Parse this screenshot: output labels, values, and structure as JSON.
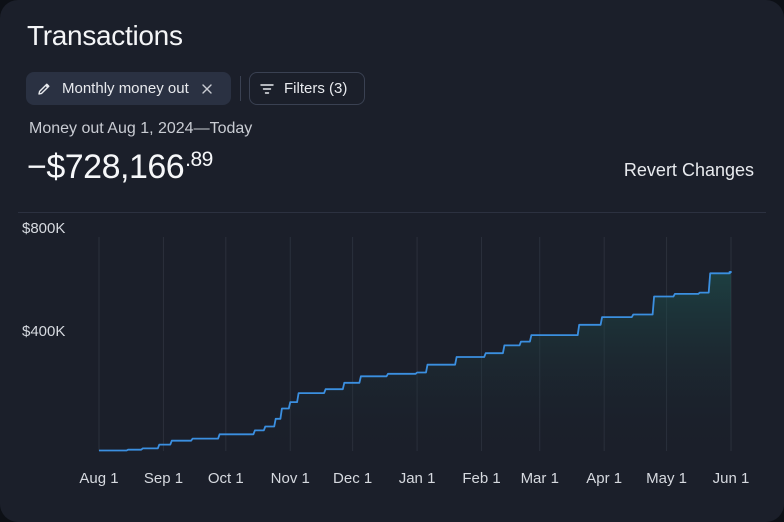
{
  "header": {
    "title": "Transactions",
    "active_filter_label": "Monthly money out",
    "filters_label": "Filters (3)",
    "subtitle": "Money out Aug 1, 2024—Today",
    "amount_main": "−$728,166",
    "amount_cents": ".89",
    "revert_label": "Revert Changes"
  },
  "icons": {
    "edit": "pencil-icon",
    "close": "close-icon",
    "filter": "filter-lines-icon"
  },
  "colors": {
    "line": "#3b8fe0",
    "area_top": "#1f5a55",
    "card": "#1b1f2a"
  },
  "chart_data": {
    "type": "area",
    "title": "",
    "xlabel": "",
    "ylabel": "",
    "grid": "vertical",
    "y_ticks": [
      {
        "value": 400000,
        "label": "$400K"
      },
      {
        "value": 800000,
        "label": "$800K"
      }
    ],
    "ylim": [
      0,
      800000
    ],
    "x_ticks": [
      {
        "x": "2024-08-01",
        "label": "Aug 1"
      },
      {
        "x": "2024-09-01",
        "label": "Sep 1"
      },
      {
        "x": "2024-10-01",
        "label": "Oct 1"
      },
      {
        "x": "2024-11-01",
        "label": "Nov 1"
      },
      {
        "x": "2024-12-01",
        "label": "Dec 1"
      },
      {
        "x": "2025-01-01",
        "label": "Jan 1"
      },
      {
        "x": "2025-02-01",
        "label": "Feb 1"
      },
      {
        "x": "2025-03-01",
        "label": "Mar 1"
      },
      {
        "x": "2025-04-01",
        "label": "Apr 1"
      },
      {
        "x": "2025-05-01",
        "label": "May 1"
      },
      {
        "x": "2025-06-01",
        "label": "Jun 1"
      }
    ],
    "series": [
      {
        "points": [
          {
            "x": "2024-08-01",
            "y": 2000
          },
          {
            "x": "2024-08-15",
            "y": 5000
          },
          {
            "x": "2024-08-22",
            "y": 10000
          },
          {
            "x": "2024-08-30",
            "y": 25000
          },
          {
            "x": "2024-09-05",
            "y": 40000
          },
          {
            "x": "2024-09-15",
            "y": 48000
          },
          {
            "x": "2024-09-28",
            "y": 65000
          },
          {
            "x": "2024-10-15",
            "y": 80000
          },
          {
            "x": "2024-10-20",
            "y": 95000
          },
          {
            "x": "2024-10-25",
            "y": 125000
          },
          {
            "x": "2024-10-28",
            "y": 165000
          },
          {
            "x": "2024-11-01",
            "y": 190000
          },
          {
            "x": "2024-11-05",
            "y": 225000
          },
          {
            "x": "2024-11-18",
            "y": 240000
          },
          {
            "x": "2024-11-27",
            "y": 265000
          },
          {
            "x": "2024-12-05",
            "y": 290000
          },
          {
            "x": "2024-12-18",
            "y": 300000
          },
          {
            "x": "2025-01-01",
            "y": 305000
          },
          {
            "x": "2025-01-06",
            "y": 335000
          },
          {
            "x": "2025-01-20",
            "y": 365000
          },
          {
            "x": "2025-02-03",
            "y": 380000
          },
          {
            "x": "2025-02-12",
            "y": 410000
          },
          {
            "x": "2025-02-20",
            "y": 425000
          },
          {
            "x": "2025-02-25",
            "y": 450000
          },
          {
            "x": "2025-03-20",
            "y": 490000
          },
          {
            "x": "2025-03-31",
            "y": 520000
          },
          {
            "x": "2025-04-15",
            "y": 530000
          },
          {
            "x": "2025-04-25",
            "y": 600000
          },
          {
            "x": "2025-05-05",
            "y": 610000
          },
          {
            "x": "2025-05-17",
            "y": 615000
          },
          {
            "x": "2025-05-22",
            "y": 690000
          },
          {
            "x": "2025-06-01",
            "y": 695000
          },
          {
            "x": "2025-06-01",
            "y": 696000
          }
        ]
      }
    ]
  }
}
